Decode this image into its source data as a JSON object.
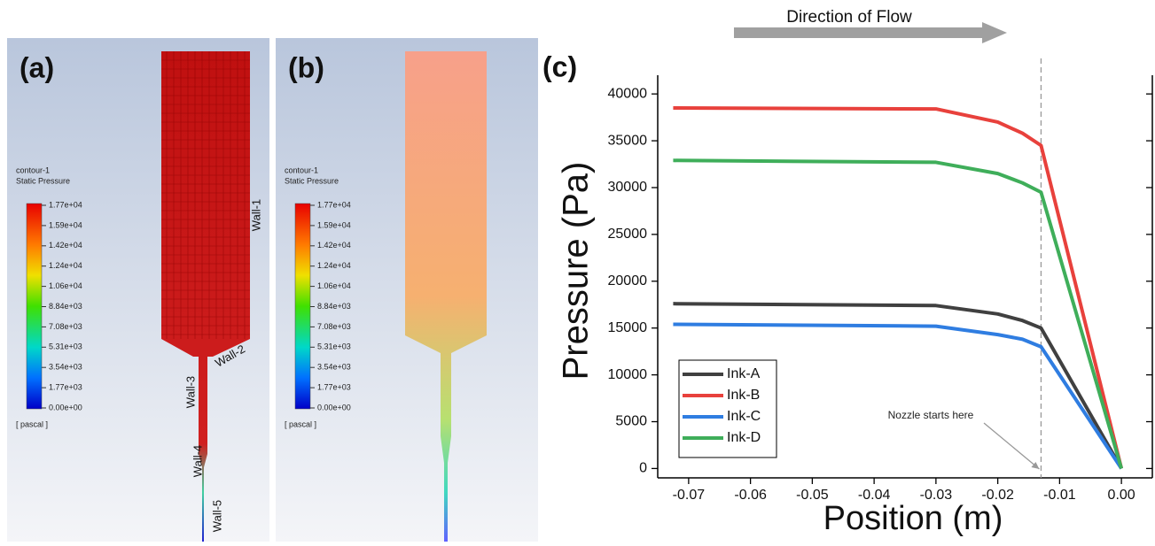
{
  "panels": [
    {
      "label": "(a)",
      "legend_title": "contour-1",
      "legend_subtitle": "Static Pressure",
      "colorbar_ticks": [
        "1.77e+04",
        "1.59e+04",
        "1.42e+04",
        "1.24e+04",
        "1.06e+04",
        "8.84e+03",
        "7.08e+03",
        "5.31e+03",
        "3.54e+03",
        "1.77e+03",
        "0.00e+00"
      ],
      "unit": "[ pascal ]",
      "wall_labels": [
        "Wall-1",
        "Wall-2",
        "Wall-3",
        "Wall-4",
        "Wall-5"
      ]
    },
    {
      "label": "(b)",
      "legend_title": "contour-1",
      "legend_subtitle": "Static Pressure",
      "colorbar_ticks": [
        "1.77e+04",
        "1.59e+04",
        "1.42e+04",
        "1.24e+04",
        "1.06e+04",
        "8.84e+03",
        "7.08e+03",
        "5.31e+03",
        "3.54e+03",
        "1.77e+03",
        "0.00e+00"
      ],
      "unit": "[ pascal ]"
    }
  ],
  "chart_data": {
    "type": "line",
    "panel_label": "(c)",
    "flow_label": "Direction of Flow",
    "x_label": "Position (m)",
    "y_label": "Pressure (Pa)",
    "x": [
      -0.0725,
      -0.03,
      -0.02,
      -0.016,
      -0.013,
      0
    ],
    "series": [
      {
        "name": "Ink-A",
        "color": "#404040",
        "values": [
          17600,
          17400,
          16500,
          15800,
          15000,
          0
        ]
      },
      {
        "name": "Ink-B",
        "color": "#e8413c",
        "values": [
          38500,
          38400,
          37000,
          35800,
          34500,
          0
        ]
      },
      {
        "name": "Ink-C",
        "color": "#2f7de1",
        "values": [
          15400,
          15200,
          14300,
          13800,
          13000,
          0
        ]
      },
      {
        "name": "Ink-D",
        "color": "#3fae5a",
        "values": [
          32900,
          32700,
          31500,
          30500,
          29500,
          0
        ]
      }
    ],
    "xlim": [
      -0.075,
      0.005
    ],
    "xticks": [
      -0.07,
      -0.06,
      -0.05,
      -0.04,
      -0.03,
      -0.02,
      -0.01,
      {
        "value": 0,
        "label": "0.00"
      }
    ],
    "ylim": [
      -1000,
      42000
    ],
    "yticks": [
      0,
      5000,
      10000,
      15000,
      20000,
      25000,
      30000,
      35000,
      40000
    ],
    "legend": "lower left",
    "annotation": {
      "text": "Nozzle starts here",
      "x": -0.013
    }
  }
}
